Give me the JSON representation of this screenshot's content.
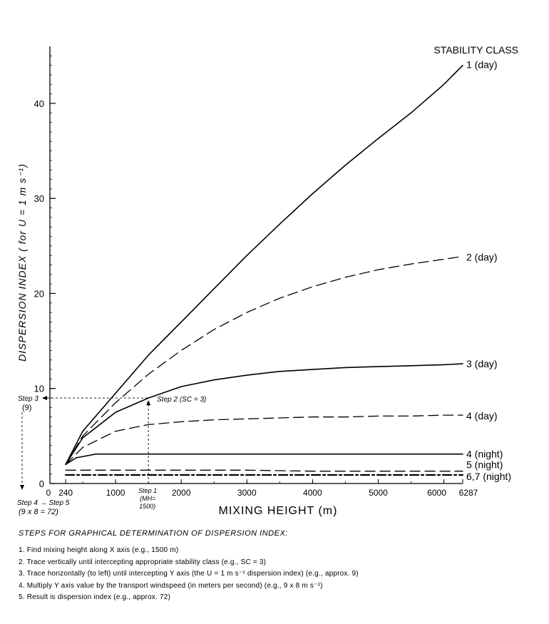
{
  "chart_data": {
    "type": "line",
    "title": "",
    "xlabel": "MIXING HEIGHT (m)",
    "ylabel": "DISPERSION INDEX ( for U = 1 m s⁻¹)",
    "legend_title": "STABILITY CLASS",
    "xlim": [
      0,
      6287
    ],
    "ylim": [
      0,
      46
    ],
    "x_ticks": [
      {
        "value": 0,
        "label": "0"
      },
      {
        "value": 240,
        "label": "240"
      },
      {
        "value": 1000,
        "label": "1000"
      },
      {
        "value": 2000,
        "label": "2000"
      },
      {
        "value": 3000,
        "label": "3000"
      },
      {
        "value": 4000,
        "label": "4000"
      },
      {
        "value": 5000,
        "label": "5000"
      },
      {
        "value": 6000,
        "label": "6000"
      },
      {
        "value": 6287,
        "label": "6287"
      }
    ],
    "y_ticks": [
      {
        "value": 0,
        "label": "0"
      },
      {
        "value": 10,
        "label": "10"
      },
      {
        "value": 20,
        "label": "20"
      },
      {
        "value": 30,
        "label": "30"
      },
      {
        "value": 40,
        "label": "40"
      }
    ],
    "series": [
      {
        "name": "1 (day)",
        "style": "solid",
        "x": [
          240,
          500,
          1000,
          1500,
          2000,
          2500,
          3000,
          3500,
          4000,
          4500,
          5000,
          5500,
          6000,
          6287
        ],
        "y": [
          2,
          5.5,
          9.5,
          13.5,
          17,
          20.5,
          24,
          27.3,
          30.5,
          33.5,
          36.3,
          39,
          42,
          44
        ]
      },
      {
        "name": "2 (day)",
        "style": "dashed",
        "x": [
          240,
          500,
          1000,
          1500,
          2000,
          2500,
          3000,
          3500,
          4000,
          4500,
          5000,
          5500,
          6000,
          6287
        ],
        "y": [
          2,
          5,
          8.5,
          11.5,
          14,
          16.2,
          18,
          19.5,
          20.7,
          21.7,
          22.5,
          23.1,
          23.6,
          23.9
        ]
      },
      {
        "name": "3 (day)",
        "style": "solid",
        "x": [
          240,
          500,
          1000,
          1500,
          2000,
          2500,
          3000,
          3500,
          4000,
          4500,
          5000,
          5500,
          6000,
          6287
        ],
        "y": [
          2,
          4.8,
          7.5,
          9,
          10.2,
          10.9,
          11.4,
          11.8,
          12.0,
          12.2,
          12.3,
          12.4,
          12.5,
          12.6
        ]
      },
      {
        "name": "4 (day)",
        "style": "dashed",
        "x": [
          240,
          500,
          1000,
          1500,
          2000,
          2500,
          3000,
          3500,
          4000,
          4500,
          5000,
          5500,
          6000,
          6287
        ],
        "y": [
          2,
          3.8,
          5.5,
          6.2,
          6.5,
          6.7,
          6.8,
          6.9,
          7.0,
          7.0,
          7.1,
          7.1,
          7.2,
          7.2
        ]
      },
      {
        "name": "4 (night)",
        "style": "solid",
        "x": [
          240,
          400,
          700,
          1000,
          2000,
          3000,
          4000,
          5000,
          6000,
          6287
        ],
        "y": [
          2,
          2.7,
          3.1,
          3.1,
          3.1,
          3.1,
          3.1,
          3.1,
          3.1,
          3.1
        ]
      },
      {
        "name": "5 (night)",
        "style": "dashed",
        "x": [
          240,
          1000,
          2000,
          3000,
          4000,
          5000,
          6000,
          6287
        ],
        "y": [
          1.4,
          1.4,
          1.4,
          1.4,
          1.3,
          1.3,
          1.3,
          1.3
        ]
      },
      {
        "name": "6,7 (night)",
        "style": "dashdot",
        "x": [
          240,
          1000,
          2000,
          3000,
          4000,
          5000,
          6000,
          6287
        ],
        "y": [
          0.9,
          0.9,
          0.9,
          0.9,
          0.9,
          0.9,
          0.9,
          0.9
        ]
      }
    ],
    "example": {
      "mixing_height": 1500,
      "dispersion_index": 9
    },
    "annotations": {
      "step1": "Step 1",
      "step1_mh": "(MH=",
      "step1_value": "1500)",
      "step2": "Step 2 (SC = 3)",
      "step3": "Step 3",
      "step3_value": "(9)",
      "step45": "Step 4 → Step 5",
      "step45_calc": "(9 x 8 = 72)"
    }
  },
  "steps": {
    "title": "STEPS FOR GRAPHICAL DETERMINATION OF DISPERSION INDEX:",
    "items": [
      "1. Find mixing height along X axis (e.g., 1500 m)",
      "2. Trace vertically until intercepting appropriate stability class (e.g., SC = 3)",
      "3. Trace horizontally (to left) until intercepting Y axis (the U = 1 m s⁻¹ dispersion index) (e.g., approx. 9)",
      "4. Multiply Y axis value by the transport windspeed (in meters per second) (e.g., 9 x 8 m s⁻¹)",
      "5. Result is dispersion index (e.g., approx. 72)"
    ]
  }
}
